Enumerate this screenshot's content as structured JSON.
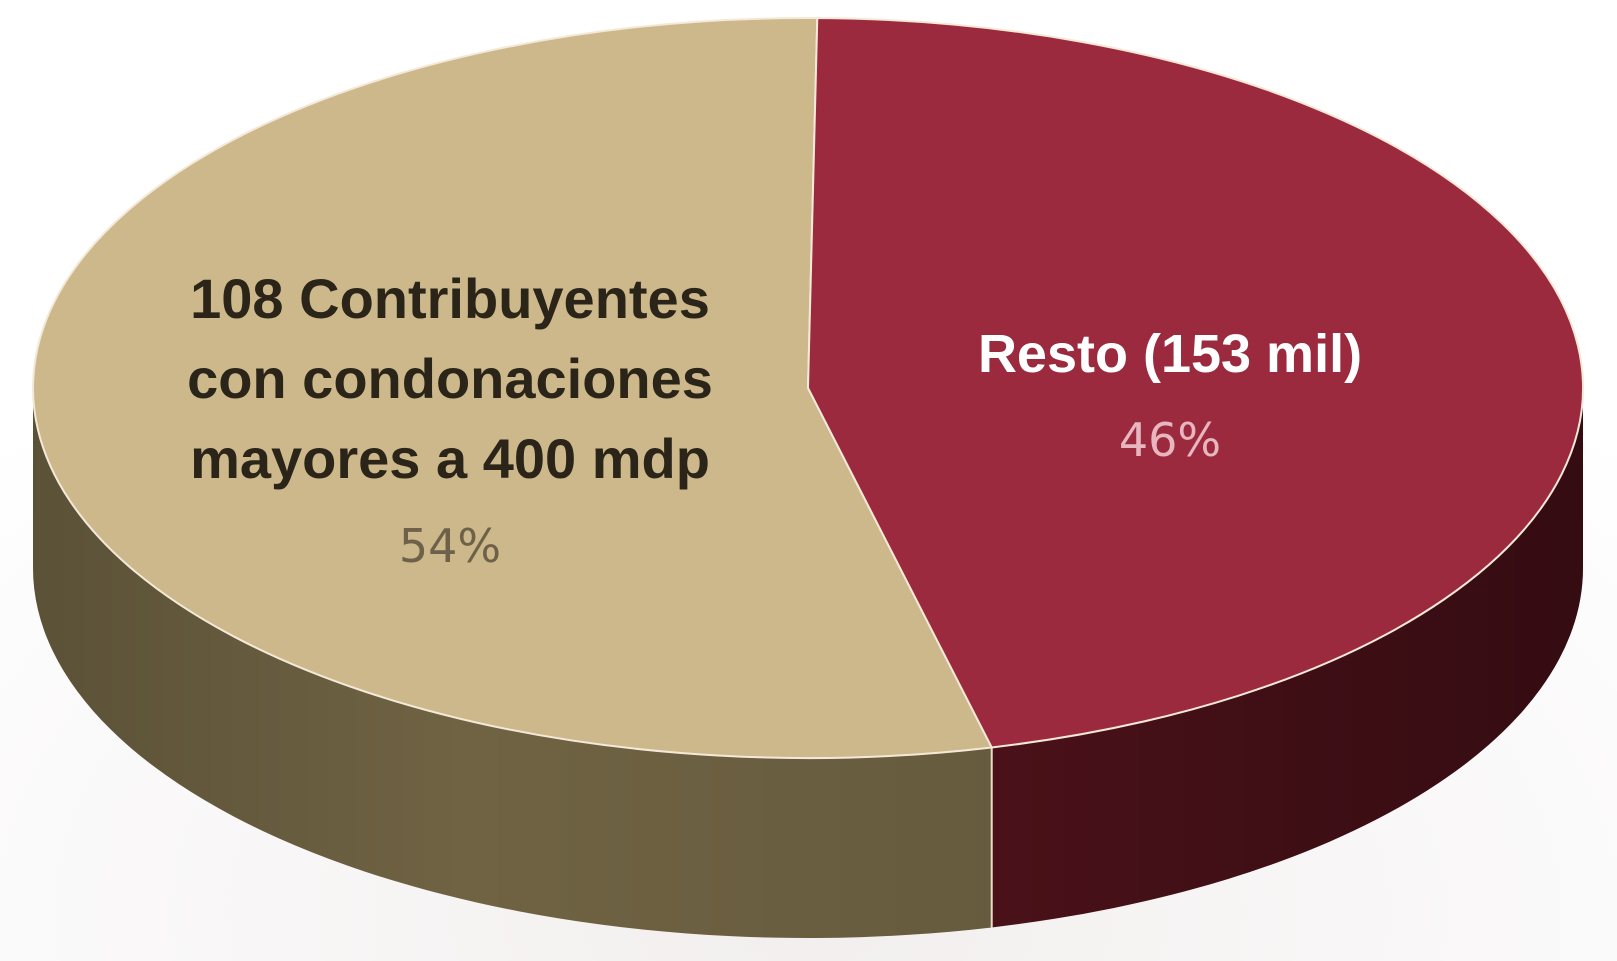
{
  "chart_data": {
    "type": "pie",
    "style": "3d",
    "slices": [
      {
        "label_lines": [
          "108 Contribuyentes",
          "con condonaciones",
          "mayores a 400 mdp"
        ],
        "percent_label": "54%",
        "value": 54,
        "color": "#cdb88b",
        "side_color": "#6f6343",
        "label_color": "#2b2418",
        "percent_color": "#6e6149"
      },
      {
        "label_lines": [
          "Resto (153 mil)"
        ],
        "percent_label": "46%",
        "value": 46,
        "color": "#9c2a3e",
        "side_color": "#4a1119",
        "label_color": "#ffffff",
        "percent_color": "#e7b6bf"
      }
    ],
    "legend": "none"
  }
}
